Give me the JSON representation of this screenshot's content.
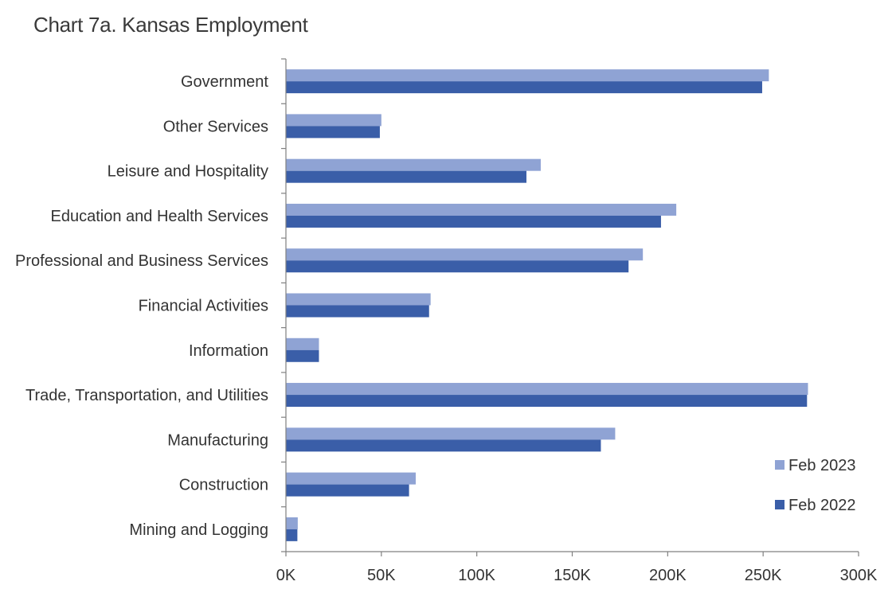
{
  "chart_data": {
    "type": "bar",
    "orientation": "horizontal",
    "title": "Chart 7a. Kansas Employment",
    "xlabel": "",
    "ylabel": "",
    "xlim": [
      0,
      300000
    ],
    "x_ticks": [
      0,
      50000,
      100000,
      150000,
      200000,
      250000,
      300000
    ],
    "x_tick_labels": [
      "0K",
      "50K",
      "100K",
      "150K",
      "200K",
      "250K",
      "300K"
    ],
    "grid": false,
    "legend_position": "bottom-right",
    "categories": [
      "Government",
      "Other Services",
      "Leisure and Hospitality",
      "Education and Health Services",
      "Professional and Business Services",
      "Financial Activities",
      "Information",
      "Trade, Transportation, and Utilities",
      "Manufacturing",
      "Construction",
      "Mining and Logging"
    ],
    "series": [
      {
        "name": "Feb 2023",
        "color": "#8fa3d4",
        "values": [
          253000,
          50000,
          133500,
          204500,
          187000,
          75800,
          17300,
          273500,
          172500,
          68000,
          6200
        ]
      },
      {
        "name": "Feb 2022",
        "color": "#3a5ea8",
        "values": [
          249500,
          49200,
          126000,
          196500,
          179500,
          75000,
          17300,
          273000,
          165000,
          64500,
          6000
        ]
      }
    ]
  }
}
